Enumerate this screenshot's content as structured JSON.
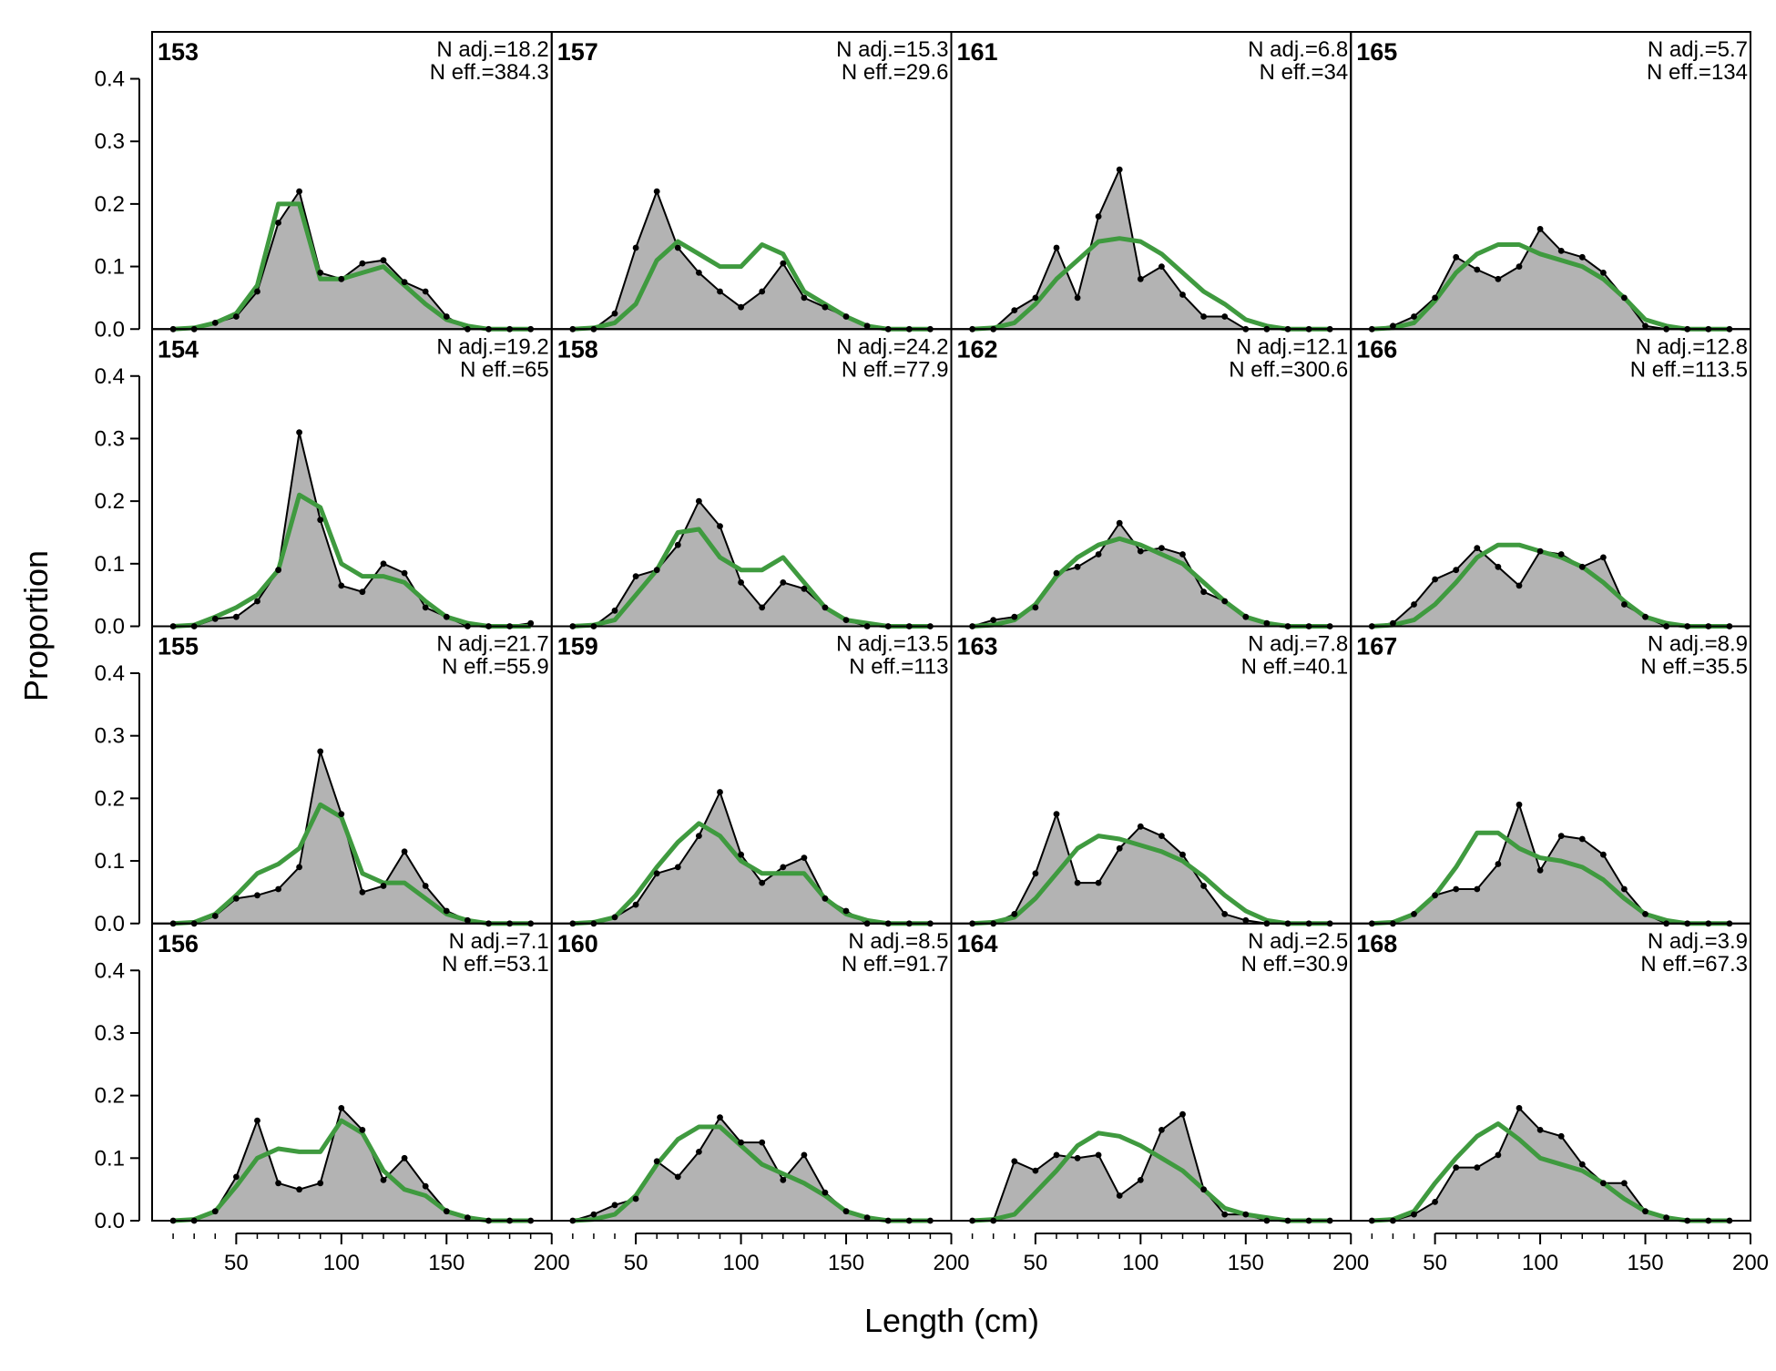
{
  "xlabel": "Length (cm)",
  "ylabel": "Proportion",
  "colors": {
    "observed_fill": "#b3b3b3",
    "observed_line": "#000000",
    "expected_line": "#3f9a3f",
    "zero_line": "#bdbdbd"
  },
  "chart_data": {
    "type": "area",
    "layout": {
      "rows": 4,
      "cols": 4,
      "order": "column-major"
    },
    "xlim": [
      10,
      200
    ],
    "ylim": [
      0,
      0.475
    ],
    "xticks": [
      50,
      100,
      150,
      200
    ],
    "yticks": [
      0,
      0.1,
      0.2,
      0.3,
      0.4
    ],
    "ytick_labels": [
      "0.0",
      "0.1",
      "0.2",
      "0.3",
      "0.4"
    ],
    "bins": [
      20,
      30,
      40,
      50,
      60,
      70,
      80,
      90,
      100,
      110,
      120,
      130,
      140,
      150,
      160,
      170,
      180,
      190
    ],
    "panels": [
      {
        "id": "153",
        "n_adj": "N adj.=18.2",
        "n_eff": "N eff.=384.3",
        "observed": [
          0,
          0,
          0.01,
          0.02,
          0.06,
          0.17,
          0.22,
          0.09,
          0.08,
          0.105,
          0.11,
          0.075,
          0.06,
          0.02,
          0,
          0,
          0,
          0
        ],
        "expected": [
          0,
          0.002,
          0.01,
          0.025,
          0.07,
          0.2,
          0.2,
          0.08,
          0.08,
          0.09,
          0.1,
          0.07,
          0.04,
          0.015,
          0.005,
          0,
          0,
          0
        ]
      },
      {
        "id": "154",
        "n_adj": "N adj.=19.2",
        "n_eff": "N eff.=65",
        "observed": [
          0,
          0,
          0.012,
          0.015,
          0.04,
          0.09,
          0.31,
          0.17,
          0.065,
          0.055,
          0.1,
          0.085,
          0.03,
          0.015,
          0,
          0,
          0,
          0.005
        ],
        "expected": [
          0,
          0.002,
          0.015,
          0.03,
          0.05,
          0.09,
          0.21,
          0.19,
          0.1,
          0.08,
          0.08,
          0.07,
          0.04,
          0.015,
          0.005,
          0,
          0,
          0
        ]
      },
      {
        "id": "155",
        "n_adj": "N adj.=21.7",
        "n_eff": "N eff.=55.9",
        "observed": [
          0,
          0,
          0.012,
          0.04,
          0.045,
          0.055,
          0.09,
          0.275,
          0.175,
          0.05,
          0.06,
          0.115,
          0.06,
          0.02,
          0.005,
          0,
          0,
          0
        ],
        "expected": [
          0,
          0.002,
          0.015,
          0.045,
          0.08,
          0.095,
          0.12,
          0.19,
          0.17,
          0.08,
          0.065,
          0.065,
          0.04,
          0.015,
          0.005,
          0,
          0,
          0
        ]
      },
      {
        "id": "156",
        "n_adj": "N adj.=7.1",
        "n_eff": "N eff.=53.1",
        "observed": [
          0,
          0,
          0.015,
          0.07,
          0.16,
          0.06,
          0.05,
          0.06,
          0.18,
          0.145,
          0.065,
          0.1,
          0.055,
          0.015,
          0.005,
          0,
          0,
          0
        ],
        "expected": [
          0,
          0.002,
          0.015,
          0.055,
          0.1,
          0.115,
          0.11,
          0.11,
          0.16,
          0.14,
          0.08,
          0.05,
          0.04,
          0.015,
          0.005,
          0,
          0,
          0
        ]
      },
      {
        "id": "157",
        "n_adj": "N adj.=15.3",
        "n_eff": "N eff.=29.6",
        "observed": [
          0,
          0,
          0.025,
          0.13,
          0.22,
          0.13,
          0.09,
          0.06,
          0.035,
          0.06,
          0.105,
          0.05,
          0.035,
          0.02,
          0.005,
          0,
          0,
          0
        ],
        "expected": [
          0,
          0.002,
          0.01,
          0.04,
          0.11,
          0.14,
          0.12,
          0.1,
          0.1,
          0.135,
          0.12,
          0.06,
          0.04,
          0.02,
          0.005,
          0,
          0,
          0
        ]
      },
      {
        "id": "158",
        "n_adj": "N adj.=24.2",
        "n_eff": "N eff.=77.9",
        "observed": [
          0,
          0,
          0.025,
          0.08,
          0.09,
          0.13,
          0.2,
          0.16,
          0.07,
          0.03,
          0.07,
          0.06,
          0.03,
          0.01,
          0,
          0,
          0,
          0
        ],
        "expected": [
          0,
          0.002,
          0.01,
          0.05,
          0.09,
          0.15,
          0.155,
          0.11,
          0.09,
          0.09,
          0.11,
          0.07,
          0.03,
          0.01,
          0.005,
          0,
          0,
          0
        ]
      },
      {
        "id": "159",
        "n_adj": "N adj.=13.5",
        "n_eff": "N eff.=113",
        "observed": [
          0,
          0,
          0.01,
          0.03,
          0.08,
          0.09,
          0.14,
          0.21,
          0.11,
          0.065,
          0.09,
          0.105,
          0.04,
          0.02,
          0,
          0,
          0,
          0
        ],
        "expected": [
          0,
          0.002,
          0.01,
          0.045,
          0.09,
          0.13,
          0.16,
          0.14,
          0.1,
          0.08,
          0.08,
          0.08,
          0.04,
          0.015,
          0.005,
          0,
          0,
          0
        ]
      },
      {
        "id": "160",
        "n_adj": "N adj.=8.5",
        "n_eff": "N eff.=91.7",
        "observed": [
          0,
          0.01,
          0.025,
          0.035,
          0.095,
          0.07,
          0.11,
          0.165,
          0.125,
          0.125,
          0.065,
          0.105,
          0.045,
          0.015,
          0.005,
          0,
          0,
          0
        ],
        "expected": [
          0,
          0.002,
          0.01,
          0.04,
          0.09,
          0.13,
          0.15,
          0.15,
          0.12,
          0.09,
          0.075,
          0.06,
          0.04,
          0.015,
          0.005,
          0,
          0,
          0
        ]
      },
      {
        "id": "161",
        "n_adj": "N adj.=6.8",
        "n_eff": "N eff.=34",
        "observed": [
          0,
          0,
          0.03,
          0.05,
          0.13,
          0.05,
          0.18,
          0.255,
          0.08,
          0.1,
          0.055,
          0.02,
          0.02,
          0,
          0,
          0,
          0,
          0
        ],
        "expected": [
          0,
          0.002,
          0.01,
          0.04,
          0.08,
          0.11,
          0.14,
          0.145,
          0.14,
          0.12,
          0.09,
          0.06,
          0.04,
          0.015,
          0.005,
          0,
          0,
          0
        ]
      },
      {
        "id": "162",
        "n_adj": "N adj.=12.1",
        "n_eff": "N eff.=300.6",
        "observed": [
          0,
          0.01,
          0.015,
          0.03,
          0.085,
          0.095,
          0.115,
          0.165,
          0.12,
          0.125,
          0.115,
          0.055,
          0.04,
          0.015,
          0.005,
          0,
          0,
          0
        ],
        "expected": [
          0,
          0.002,
          0.01,
          0.035,
          0.08,
          0.11,
          0.13,
          0.14,
          0.13,
          0.115,
          0.1,
          0.07,
          0.04,
          0.015,
          0.005,
          0,
          0,
          0
        ]
      },
      {
        "id": "163",
        "n_adj": "N adj.=7.8",
        "n_eff": "N eff.=40.1",
        "observed": [
          0,
          0,
          0.015,
          0.08,
          0.175,
          0.065,
          0.065,
          0.12,
          0.155,
          0.14,
          0.11,
          0.06,
          0.015,
          0.005,
          0,
          0,
          0,
          0
        ],
        "expected": [
          0,
          0.002,
          0.01,
          0.04,
          0.08,
          0.12,
          0.14,
          0.135,
          0.125,
          0.115,
          0.1,
          0.075,
          0.045,
          0.02,
          0.005,
          0,
          0,
          0
        ]
      },
      {
        "id": "164",
        "n_adj": "N adj.=2.5",
        "n_eff": "N eff.=30.9",
        "observed": [
          0,
          0,
          0.095,
          0.08,
          0.105,
          0.1,
          0.105,
          0.04,
          0.065,
          0.145,
          0.17,
          0.05,
          0.01,
          0.01,
          0,
          0,
          0,
          0
        ],
        "expected": [
          0,
          0.002,
          0.01,
          0.045,
          0.08,
          0.12,
          0.14,
          0.135,
          0.12,
          0.1,
          0.08,
          0.05,
          0.02,
          0.01,
          0.005,
          0,
          0,
          0
        ]
      },
      {
        "id": "165",
        "n_adj": "N adj.=5.7",
        "n_eff": "N eff.=134",
        "observed": [
          0,
          0.005,
          0.02,
          0.05,
          0.115,
          0.095,
          0.08,
          0.1,
          0.16,
          0.125,
          0.115,
          0.09,
          0.05,
          0.005,
          0,
          0,
          0,
          0
        ],
        "expected": [
          0,
          0.002,
          0.01,
          0.045,
          0.09,
          0.12,
          0.135,
          0.135,
          0.12,
          0.11,
          0.1,
          0.08,
          0.05,
          0.015,
          0.005,
          0,
          0,
          0
        ]
      },
      {
        "id": "166",
        "n_adj": "N adj.=12.8",
        "n_eff": "N eff.=113.5",
        "observed": [
          0,
          0.005,
          0.035,
          0.075,
          0.09,
          0.125,
          0.095,
          0.065,
          0.12,
          0.115,
          0.095,
          0.11,
          0.035,
          0.015,
          0,
          0,
          0,
          0
        ],
        "expected": [
          0,
          0.002,
          0.01,
          0.035,
          0.07,
          0.11,
          0.13,
          0.13,
          0.12,
          0.11,
          0.095,
          0.07,
          0.04,
          0.015,
          0.005,
          0,
          0,
          0
        ]
      },
      {
        "id": "167",
        "n_adj": "N adj.=8.9",
        "n_eff": "N eff.=35.5",
        "observed": [
          0,
          0,
          0.015,
          0.045,
          0.055,
          0.055,
          0.095,
          0.19,
          0.085,
          0.14,
          0.135,
          0.11,
          0.055,
          0.015,
          0,
          0,
          0,
          0
        ],
        "expected": [
          0,
          0.002,
          0.015,
          0.045,
          0.09,
          0.145,
          0.145,
          0.12,
          0.105,
          0.1,
          0.09,
          0.07,
          0.04,
          0.015,
          0.005,
          0,
          0,
          0
        ]
      },
      {
        "id": "168",
        "n_adj": "N adj.=3.9",
        "n_eff": "N eff.=67.3",
        "observed": [
          0,
          0,
          0.01,
          0.03,
          0.085,
          0.085,
          0.105,
          0.18,
          0.145,
          0.135,
          0.09,
          0.06,
          0.06,
          0.015,
          0.005,
          0,
          0,
          0
        ],
        "expected": [
          0,
          0.002,
          0.015,
          0.06,
          0.1,
          0.135,
          0.155,
          0.13,
          0.1,
          0.09,
          0.08,
          0.06,
          0.035,
          0.015,
          0.005,
          0,
          0,
          0
        ]
      }
    ]
  }
}
